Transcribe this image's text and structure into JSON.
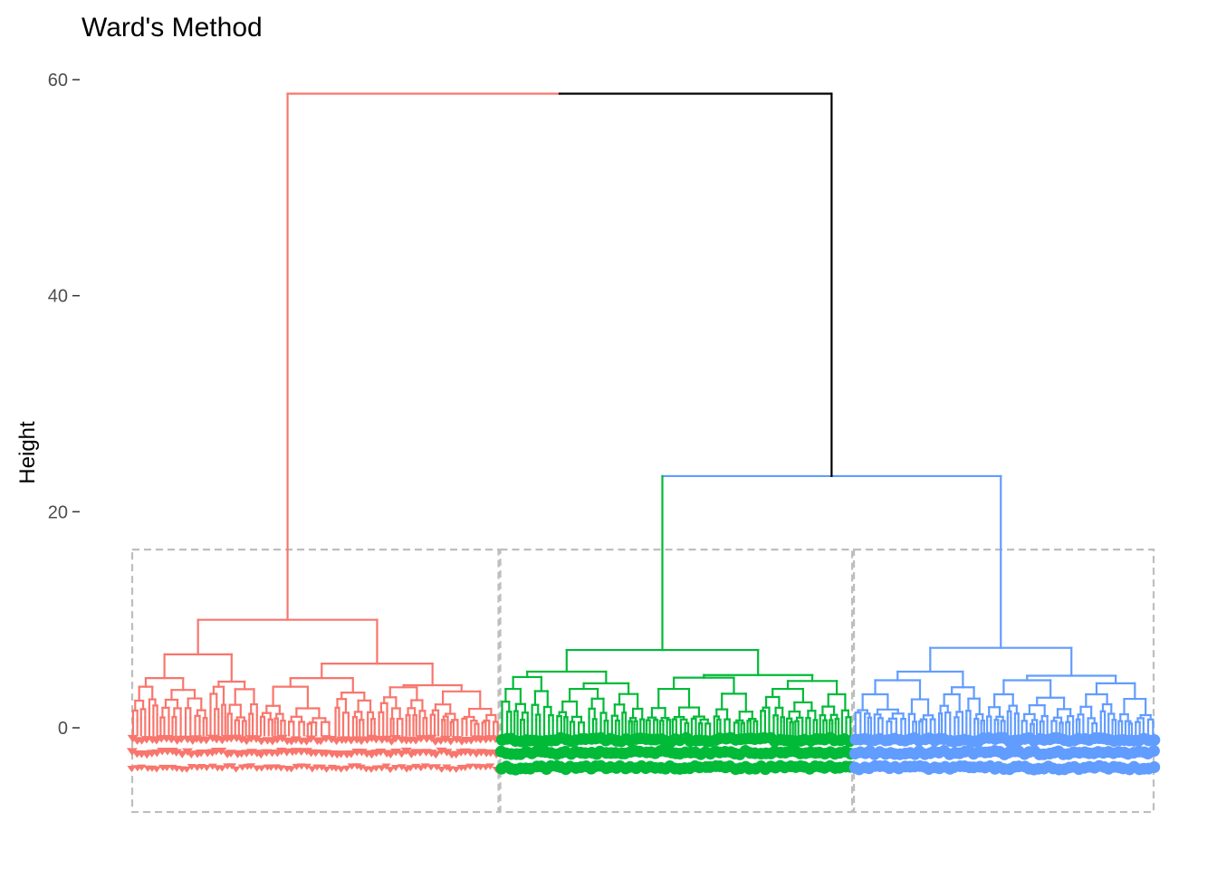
{
  "chart_data": {
    "type": "dendrogram",
    "title": "Ward's Method",
    "ylabel": "Height",
    "xlabel": "",
    "ylim": [
      -8,
      61
    ],
    "yticks": [
      0,
      20,
      40,
      60
    ],
    "ytick_labels": [
      "0",
      "20",
      "40",
      "60"
    ],
    "grid": false,
    "legend": "none",
    "k": 3,
    "cut_height": 16.5,
    "root_height": 58.7,
    "clusters": [
      {
        "color": "#F8766D",
        "leaf_marker": "triangle",
        "leaf_fraction": 0.36,
        "merge_heights": [
          10.0,
          6.8,
          4.6,
          3.8
        ]
      },
      {
        "color": "#00BA38",
        "leaf_marker": "circle",
        "leaf_fraction": 0.345,
        "merge_heights": [
          7.2,
          5.2,
          4.7,
          3.6
        ]
      },
      {
        "color": "#619CFF",
        "leaf_marker": "circle",
        "leaf_fraction": 0.295,
        "merge_heights": [
          7.4,
          5.2,
          4.4,
          3.1
        ]
      }
    ],
    "upper_merges": [
      {
        "height": 23.3,
        "joins": "clusters 2 and 3",
        "color": "#619CFF"
      },
      {
        "height": 58.7,
        "joins": "cluster 1 and clusters 2-3",
        "color": "#000000"
      }
    ],
    "rect_color": "#bebebe"
  }
}
